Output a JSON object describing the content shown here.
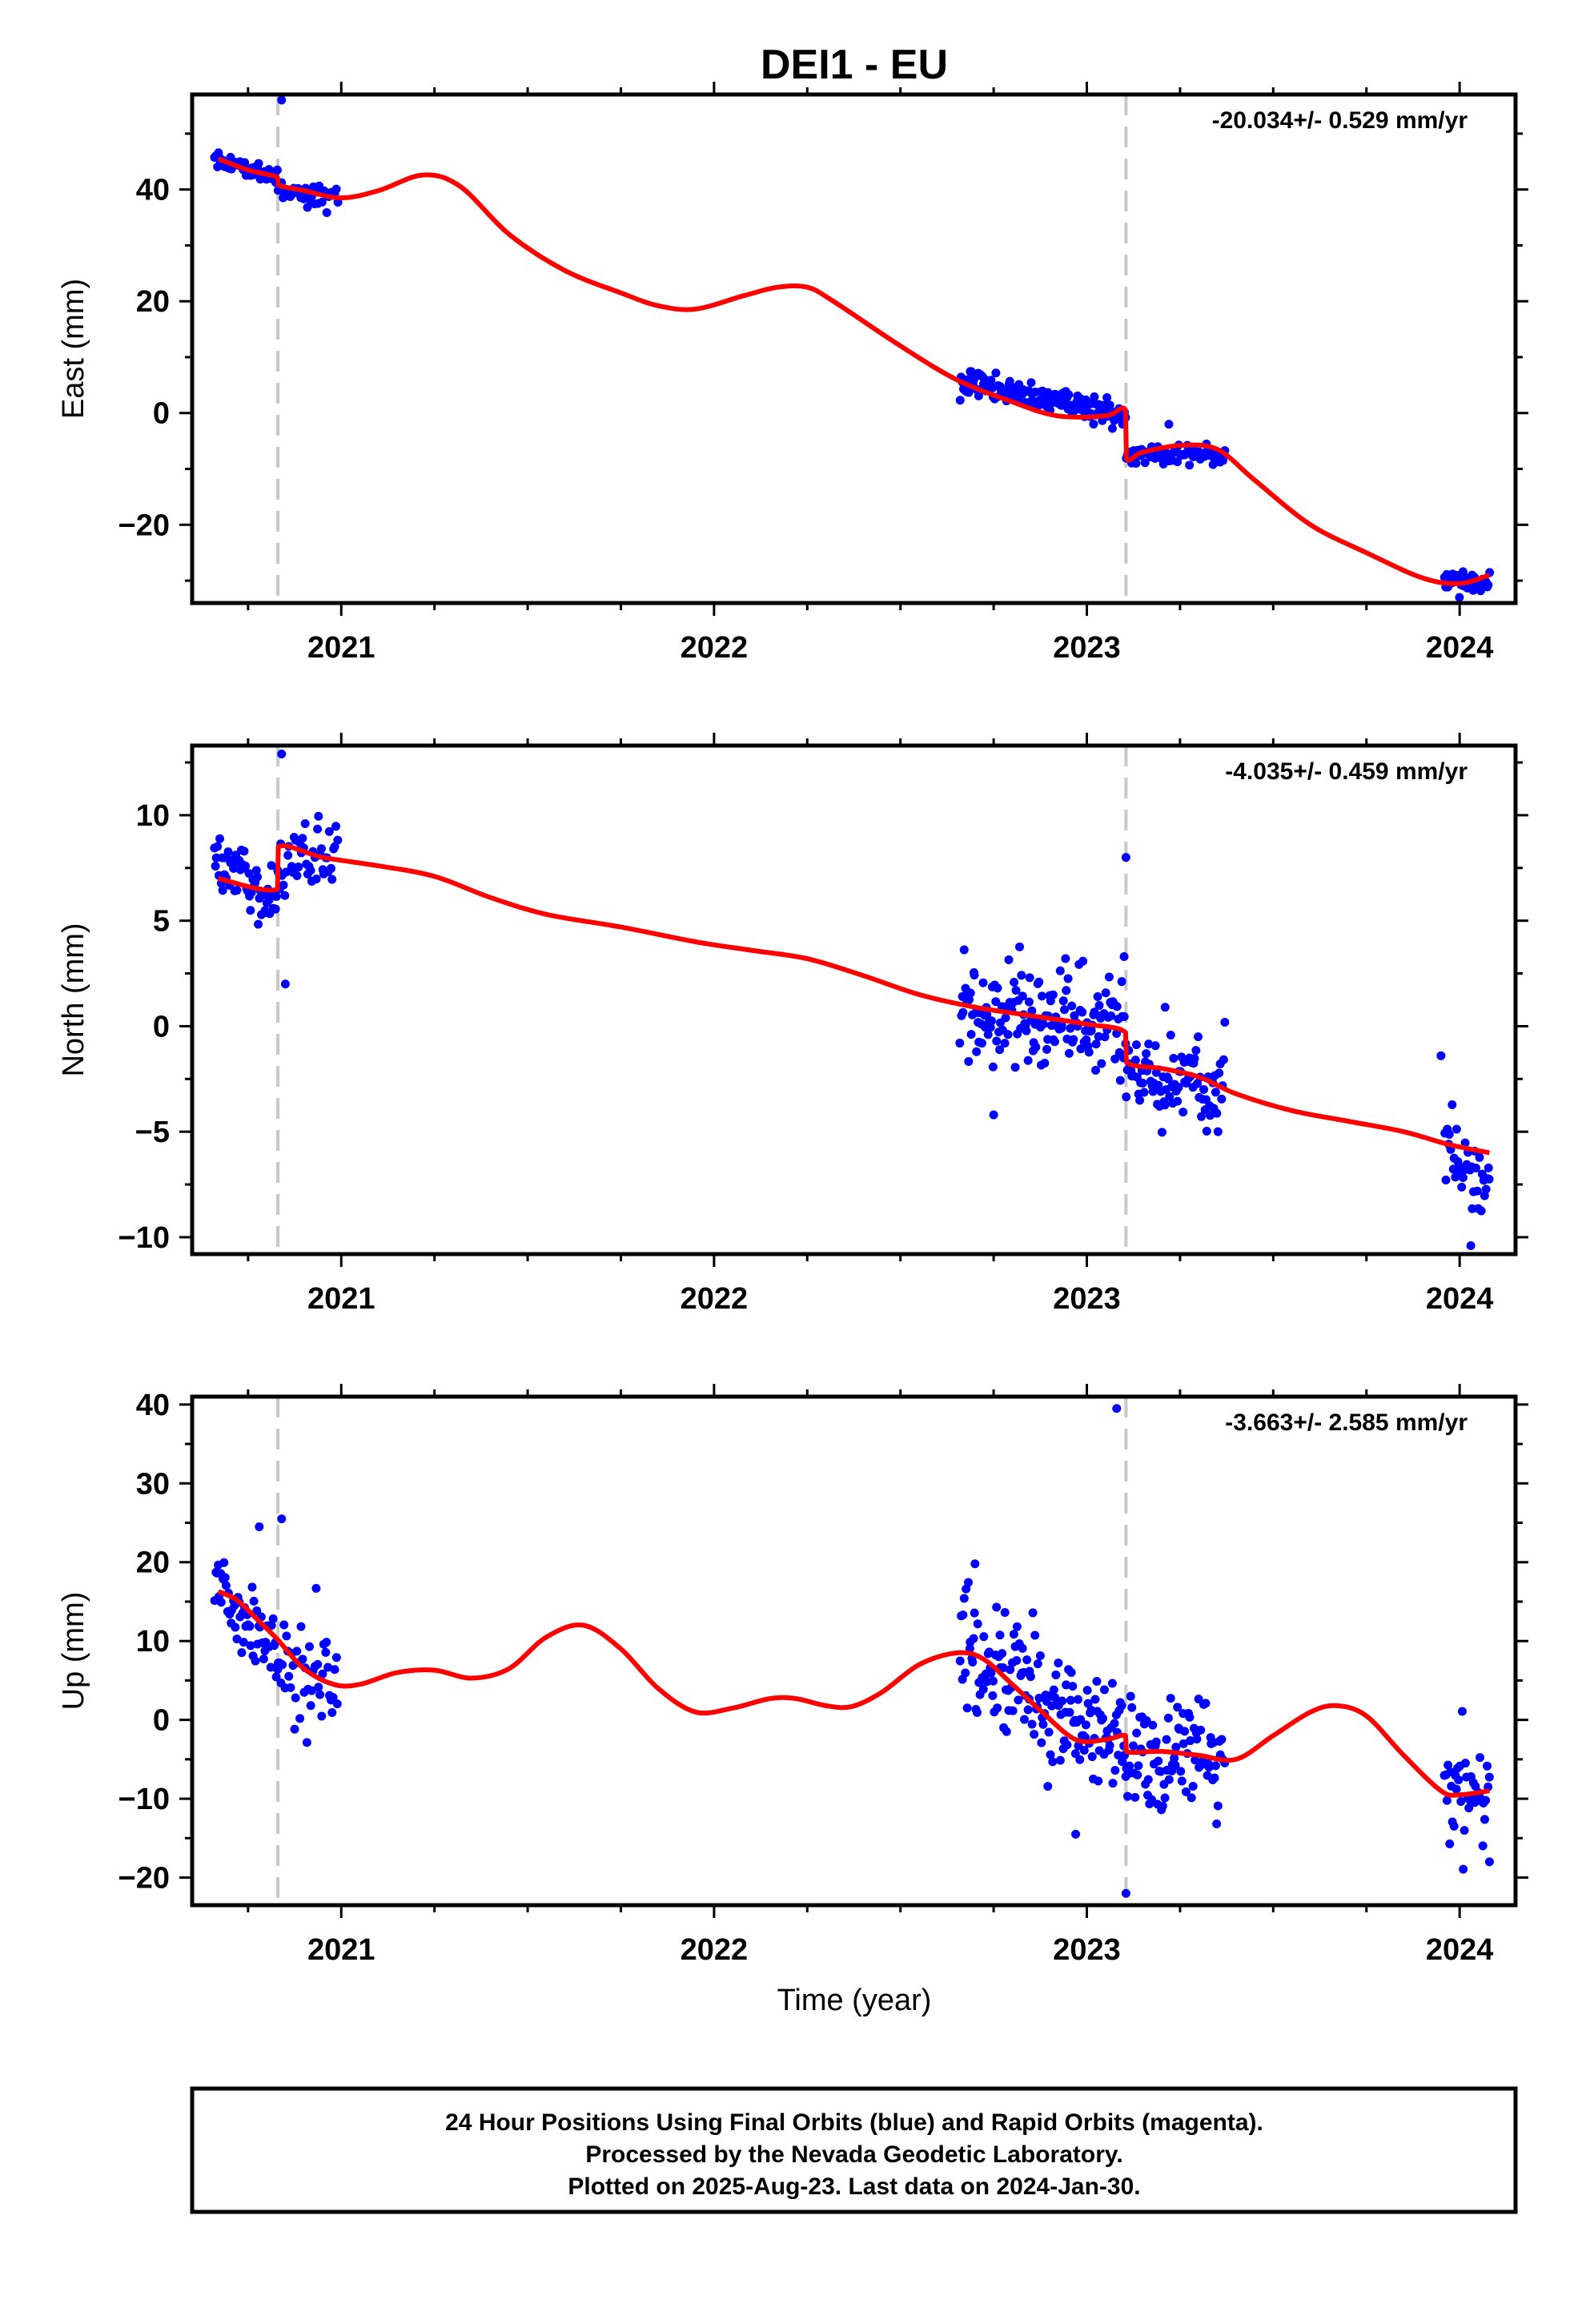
{
  "title": "DEI1 - EU",
  "xlabel": "Time (year)",
  "footer": {
    "line1": "24 Hour Positions Using Final Orbits (blue) and Rapid Orbits (magenta).",
    "line2": "Processed by the Nevada Geodetic Laboratory.",
    "line3": "Plotted on 2025-Aug-23. Last data on 2024-Jan-30."
  },
  "colors": {
    "data": "#0000ff",
    "model": "#ff0000",
    "event": "#c8c8c8",
    "axes": "#000000"
  },
  "chart_data": [
    {
      "type": "scatter",
      "panel": "east",
      "ylabel": "East (mm)",
      "rate": "-20.034+/- 0.529 mm/yr",
      "xlim": [
        2020.6,
        2024.15
      ],
      "ylim": [
        -34,
        57
      ],
      "yticks": [
        -20,
        0,
        20,
        40
      ],
      "xticks": [
        2021,
        2022,
        2023,
        2024
      ],
      "event_lines": [
        2020.83,
        2023.105
      ],
      "model": [
        [
          2020.67,
          45.5
        ],
        [
          2020.75,
          43.5
        ],
        [
          2020.829,
          42.2
        ],
        [
          2020.831,
          40.8
        ],
        [
          2020.9,
          39.8
        ],
        [
          2021.0,
          38.5
        ],
        [
          2021.1,
          39.8
        ],
        [
          2021.22,
          42.6
        ],
        [
          2021.32,
          40.5
        ],
        [
          2021.45,
          32.0
        ],
        [
          2021.6,
          25.5
        ],
        [
          2021.75,
          21.5
        ],
        [
          2021.85,
          19.2
        ],
        [
          2021.95,
          18.6
        ],
        [
          2022.08,
          21.0
        ],
        [
          2022.17,
          22.5
        ],
        [
          2022.25,
          22.5
        ],
        [
          2022.32,
          20.0
        ],
        [
          2022.5,
          12.0
        ],
        [
          2022.65,
          6.0
        ],
        [
          2022.8,
          2.0
        ],
        [
          2022.92,
          -0.5
        ],
        [
          2023.05,
          -0.5
        ],
        [
          2023.104,
          0.5
        ],
        [
          2023.106,
          -8.0
        ],
        [
          2023.15,
          -7.0
        ],
        [
          2023.25,
          -5.8
        ],
        [
          2023.35,
          -6.5
        ],
        [
          2023.45,
          -12.0
        ],
        [
          2023.6,
          -20.0
        ],
        [
          2023.75,
          -25.0
        ],
        [
          2023.9,
          -29.5
        ],
        [
          2024.0,
          -30.5
        ],
        [
          2024.08,
          -29.0
        ]
      ],
      "data": [
        {
          "x0": 2020.66,
          "x1": 2020.829,
          "a": 45.5,
          "b": 42.3,
          "n": 45,
          "s": 0.9,
          "seed": 11
        },
        {
          "x0": 2020.831,
          "x1": 2020.99,
          "a": 40.6,
          "b": 38.6,
          "n": 40,
          "s": 1.0,
          "seed": 12
        },
        {
          "x0": 2022.66,
          "x1": 2023.104,
          "a": 6.0,
          "b": -0.5,
          "n": 150,
          "s": 1.1,
          "seed": 13
        },
        {
          "x0": 2023.106,
          "x1": 2023.37,
          "a": -7.5,
          "b": -7.5,
          "n": 70,
          "s": 1.0,
          "seed": 14
        },
        {
          "x0": 2023.96,
          "x1": 2024.08,
          "a": -29.5,
          "b": -31.0,
          "n": 40,
          "s": 1.0,
          "seed": 15
        }
      ],
      "outliers": [
        [
          2020.84,
          56.0
        ],
        [
          2023.22,
          -2.0
        ]
      ]
    },
    {
      "type": "scatter",
      "panel": "north",
      "ylabel": "North (mm)",
      "rate": "-4.035+/- 0.459 mm/yr",
      "xlim": [
        2020.6,
        2024.15
      ],
      "ylim": [
        -10.8,
        13.3
      ],
      "yticks": [
        -10,
        -5,
        0,
        5,
        10
      ],
      "xticks": [
        2021,
        2022,
        2023,
        2024
      ],
      "event_lines": [
        2020.83,
        2023.105
      ],
      "model": [
        [
          2020.67,
          7.0
        ],
        [
          2020.829,
          6.5
        ],
        [
          2020.831,
          8.5
        ],
        [
          2020.95,
          8.0
        ],
        [
          2021.1,
          7.6
        ],
        [
          2021.25,
          7.1
        ],
        [
          2021.4,
          6.1
        ],
        [
          2021.55,
          5.3
        ],
        [
          2021.75,
          4.7
        ],
        [
          2021.95,
          4.0
        ],
        [
          2022.1,
          3.6
        ],
        [
          2022.25,
          3.2
        ],
        [
          2022.4,
          2.4
        ],
        [
          2022.55,
          1.5
        ],
        [
          2022.7,
          0.9
        ],
        [
          2022.85,
          0.5
        ],
        [
          2023.0,
          0.1
        ],
        [
          2023.104,
          -0.3
        ],
        [
          2023.106,
          -1.7
        ],
        [
          2023.2,
          -2.0
        ],
        [
          2023.3,
          -2.4
        ],
        [
          2023.4,
          -3.2
        ],
        [
          2023.55,
          -4.0
        ],
        [
          2023.7,
          -4.5
        ],
        [
          2023.85,
          -5.0
        ],
        [
          2023.97,
          -5.6
        ],
        [
          2024.08,
          -6.0
        ]
      ],
      "data": [
        {
          "x0": 2020.66,
          "x1": 2020.829,
          "a": 8.0,
          "b": 6.0,
          "n": 60,
          "s": 0.9,
          "seed": 21
        },
        {
          "x0": 2020.831,
          "x1": 2020.99,
          "a": 8.0,
          "b": 8.2,
          "n": 45,
          "s": 0.8,
          "seed": 22
        },
        {
          "x0": 2022.66,
          "x1": 2023.104,
          "a": 0.8,
          "b": 0.0,
          "n": 160,
          "s": 1.2,
          "seed": 23
        },
        {
          "x0": 2023.106,
          "x1": 2023.37,
          "a": -2.3,
          "b": -2.8,
          "n": 90,
          "s": 1.0,
          "seed": 24
        },
        {
          "x0": 2023.96,
          "x1": 2024.08,
          "a": -5.0,
          "b": -8.0,
          "n": 38,
          "s": 1.1,
          "seed": 25
        }
      ],
      "outliers": [
        [
          2020.84,
          12.9
        ],
        [
          2020.85,
          2.0
        ],
        [
          2023.105,
          8.0
        ],
        [
          2023.1,
          3.3
        ],
        [
          2022.75,
          -4.2
        ],
        [
          2023.21,
          0.9
        ],
        [
          2023.95,
          -1.4
        ],
        [
          2024.03,
          -10.4
        ]
      ]
    },
    {
      "type": "scatter",
      "panel": "up",
      "ylabel": "Up (mm)",
      "rate": "-3.663+/- 2.585 mm/yr",
      "xlim": [
        2020.6,
        2024.15
      ],
      "ylim": [
        -23.5,
        41
      ],
      "yticks": [
        -20,
        -10,
        0,
        10,
        20,
        30,
        40
      ],
      "xticks": [
        2021,
        2022,
        2023,
        2024
      ],
      "event_lines": [
        2020.83,
        2023.105
      ],
      "model": [
        [
          2020.67,
          16.3
        ],
        [
          2020.72,
          15.2
        ],
        [
          2020.78,
          12.5
        ],
        [
          2020.829,
          10.2
        ],
        [
          2020.9,
          6.5
        ],
        [
          2020.98,
          4.5
        ],
        [
          2021.05,
          4.5
        ],
        [
          2021.15,
          6.0
        ],
        [
          2021.25,
          6.3
        ],
        [
          2021.35,
          5.3
        ],
        [
          2021.45,
          6.5
        ],
        [
          2021.55,
          10.5
        ],
        [
          2021.65,
          12.0
        ],
        [
          2021.75,
          9.0
        ],
        [
          2021.85,
          4.0
        ],
        [
          2021.95,
          1.0
        ],
        [
          2022.05,
          1.5
        ],
        [
          2022.15,
          2.7
        ],
        [
          2022.22,
          2.7
        ],
        [
          2022.3,
          1.8
        ],
        [
          2022.37,
          1.7
        ],
        [
          2022.45,
          3.5
        ],
        [
          2022.55,
          7.0
        ],
        [
          2022.65,
          8.5
        ],
        [
          2022.72,
          7.8
        ],
        [
          2022.8,
          4.5
        ],
        [
          2022.88,
          1.0
        ],
        [
          2022.97,
          -2.5
        ],
        [
          2023.05,
          -2.5
        ],
        [
          2023.104,
          -2.0
        ],
        [
          2023.106,
          -4.0
        ],
        [
          2023.2,
          -4.0
        ],
        [
          2023.3,
          -4.5
        ],
        [
          2023.4,
          -5.0
        ],
        [
          2023.5,
          -2.0
        ],
        [
          2023.6,
          1.0
        ],
        [
          2023.67,
          1.8
        ],
        [
          2023.75,
          0.5
        ],
        [
          2023.85,
          -4.5
        ],
        [
          2023.95,
          -9.0
        ],
        [
          2024.0,
          -9.5
        ],
        [
          2024.08,
          -9.0
        ]
      ],
      "data": [
        {
          "x0": 2020.66,
          "x1": 2020.829,
          "a": 17.0,
          "b": 10.0,
          "n": 55,
          "s": 2.5,
          "seed": 31
        },
        {
          "x0": 2020.831,
          "x1": 2020.99,
          "a": 7.5,
          "b": 5.0,
          "n": 45,
          "s": 3.5,
          "seed": 32
        },
        {
          "x0": 2022.66,
          "x1": 2023.104,
          "a": 8.0,
          "b": -3.0,
          "n": 160,
          "s": 4.0,
          "seed": 33
        },
        {
          "x0": 2023.106,
          "x1": 2023.37,
          "a": -4.5,
          "b": -5.0,
          "n": 90,
          "s": 3.5,
          "seed": 34
        },
        {
          "x0": 2023.96,
          "x1": 2024.08,
          "a": -8.0,
          "b": -9.0,
          "n": 40,
          "s": 4.0,
          "seed": 35
        }
      ],
      "outliers": [
        [
          2023.08,
          39.5
        ],
        [
          2023.105,
          -22.0
        ],
        [
          2020.84,
          25.5
        ],
        [
          2020.78,
          24.5
        ],
        [
          2022.7,
          19.8
        ],
        [
          2024.08,
          -18.0
        ],
        [
          2022.97,
          -14.5
        ]
      ]
    }
  ]
}
